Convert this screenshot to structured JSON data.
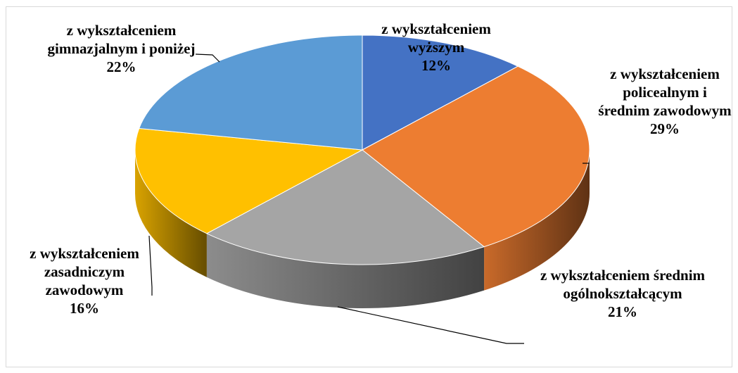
{
  "chart_data": {
    "type": "pie",
    "categories": [
      "z wykształceniem wyższym",
      "z wykształceniem policealnym i średnim zawodowym",
      "z wykształceniem średnim ogólnokształcącym",
      "z wykształceniem zasadniczym zawodowym",
      "z wykształceniem gimnazjalnym i poniżej"
    ],
    "values": [
      12,
      29,
      21,
      16,
      22
    ],
    "value_labels": [
      "12%",
      "29%",
      "21%",
      "16%",
      "22%"
    ],
    "colors": [
      "#4472c4",
      "#ed7d31",
      "#a5a5a5",
      "#ffc000",
      "#5b9bd5"
    ]
  }
}
